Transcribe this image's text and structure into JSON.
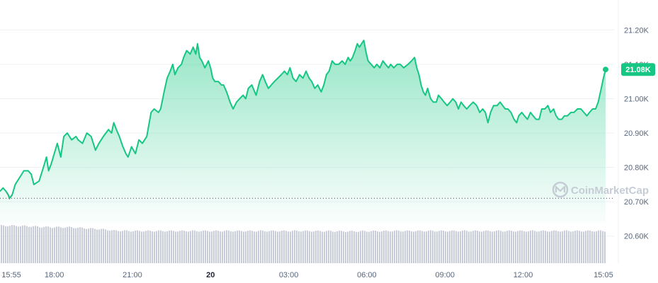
{
  "chart_data": {
    "type": "area",
    "series_color": "#16c784",
    "fill_color_top": "#16c784",
    "baseline_color": "#ea3943",
    "volume_color": "#c8ccd8",
    "ylim": [
      20.56,
      21.24
    ],
    "y_ticks": [
      {
        "value": 21.2,
        "label": "21.20K"
      },
      {
        "value": 21.1,
        "label": "21.10K"
      },
      {
        "value": 21.0,
        "label": "21.00K"
      },
      {
        "value": 20.9,
        "label": "20.90K"
      },
      {
        "value": 20.8,
        "label": "20.80K"
      },
      {
        "value": 20.7,
        "label": "20.70K"
      },
      {
        "value": 20.6,
        "label": "20.60K"
      }
    ],
    "x_ticks": [
      {
        "t": 0,
        "label": "15:55",
        "bold": false
      },
      {
        "t": 125,
        "label": "18:00",
        "bold": false
      },
      {
        "t": 305,
        "label": "21:00",
        "bold": false
      },
      {
        "t": 485,
        "label": "20",
        "bold": true
      },
      {
        "t": 665,
        "label": "03:00",
        "bold": false
      },
      {
        "t": 845,
        "label": "06:00",
        "bold": false
      },
      {
        "t": 1025,
        "label": "09:00",
        "bold": false
      },
      {
        "t": 1205,
        "label": "12:00",
        "bold": false
      },
      {
        "t": 1390,
        "label": "15:05",
        "bold": false
      }
    ],
    "baseline_value": 20.71,
    "current_price_label": "21.08K",
    "current_price_value": 21.085,
    "price_points": [
      [
        0,
        20.73
      ],
      [
        7,
        20.74
      ],
      [
        14,
        20.73
      ],
      [
        19,
        20.72
      ],
      [
        22,
        20.71
      ],
      [
        28,
        20.72
      ],
      [
        35,
        20.75
      ],
      [
        45,
        20.77
      ],
      [
        55,
        20.79
      ],
      [
        65,
        20.79
      ],
      [
        72,
        20.78
      ],
      [
        78,
        20.75
      ],
      [
        90,
        20.76
      ],
      [
        100,
        20.8
      ],
      [
        107,
        20.83
      ],
      [
        112,
        20.79
      ],
      [
        118,
        20.81
      ],
      [
        125,
        20.84
      ],
      [
        132,
        20.87
      ],
      [
        140,
        20.83
      ],
      [
        147,
        20.89
      ],
      [
        155,
        20.9
      ],
      [
        165,
        20.88
      ],
      [
        175,
        20.89
      ],
      [
        180,
        20.88
      ],
      [
        190,
        20.87
      ],
      [
        200,
        20.9
      ],
      [
        210,
        20.89
      ],
      [
        220,
        20.85
      ],
      [
        228,
        20.87
      ],
      [
        238,
        20.89
      ],
      [
        250,
        20.91
      ],
      [
        257,
        20.9
      ],
      [
        262,
        20.93
      ],
      [
        268,
        20.91
      ],
      [
        275,
        20.89
      ],
      [
        283,
        20.86
      ],
      [
        290,
        20.84
      ],
      [
        295,
        20.83
      ],
      [
        303,
        20.86
      ],
      [
        312,
        20.84
      ],
      [
        320,
        20.88
      ],
      [
        328,
        20.87
      ],
      [
        338,
        20.89
      ],
      [
        348,
        20.96
      ],
      [
        355,
        20.97
      ],
      [
        365,
        20.96
      ],
      [
        370,
        20.97
      ],
      [
        378,
        21.02
      ],
      [
        385,
        21.06
      ],
      [
        392,
        21.08
      ],
      [
        398,
        21.1
      ],
      [
        403,
        21.07
      ],
      [
        410,
        21.09
      ],
      [
        418,
        21.1
      ],
      [
        423,
        21.12
      ],
      [
        430,
        21.14
      ],
      [
        438,
        21.13
      ],
      [
        445,
        21.15
      ],
      [
        451,
        21.13
      ],
      [
        455,
        21.16
      ],
      [
        460,
        21.12
      ],
      [
        465,
        21.11
      ],
      [
        472,
        21.09
      ],
      [
        480,
        21.11
      ],
      [
        485,
        21.09
      ],
      [
        490,
        21.06
      ],
      [
        495,
        21.05
      ],
      [
        503,
        21.05
      ],
      [
        510,
        21.04
      ],
      [
        515,
        21.04
      ],
      [
        522,
        21.02
      ],
      [
        530,
        20.99
      ],
      [
        537,
        20.97
      ],
      [
        545,
        20.99
      ],
      [
        552,
        21.0
      ],
      [
        560,
        21.01
      ],
      [
        566,
        21.0
      ],
      [
        572,
        21.03
      ],
      [
        580,
        21.04
      ],
      [
        590,
        21.01
      ],
      [
        598,
        21.05
      ],
      [
        605,
        21.07
      ],
      [
        611,
        21.05
      ],
      [
        618,
        21.03
      ],
      [
        625,
        21.04
      ],
      [
        632,
        21.05
      ],
      [
        640,
        21.06
      ],
      [
        648,
        21.07
      ],
      [
        655,
        21.08
      ],
      [
        662,
        21.07
      ],
      [
        668,
        21.09
      ],
      [
        675,
        21.06
      ],
      [
        682,
        21.05
      ],
      [
        690,
        21.07
      ],
      [
        698,
        21.06
      ],
      [
        705,
        21.08
      ],
      [
        712,
        21.06
      ],
      [
        718,
        21.05
      ],
      [
        725,
        21.03
      ],
      [
        732,
        21.04
      ],
      [
        740,
        21.02
      ],
      [
        746,
        21.04
      ],
      [
        752,
        21.07
      ],
      [
        758,
        21.08
      ],
      [
        765,
        21.11
      ],
      [
        772,
        21.1
      ],
      [
        780,
        21.1
      ],
      [
        788,
        21.11
      ],
      [
        795,
        21.1
      ],
      [
        802,
        21.12
      ],
      [
        807,
        21.11
      ],
      [
        812,
        21.12
      ],
      [
        818,
        21.14
      ],
      [
        823,
        21.16
      ],
      [
        828,
        21.15
      ],
      [
        833,
        21.16
      ],
      [
        838,
        21.17
      ],
      [
        844,
        21.13
      ],
      [
        848,
        21.11
      ],
      [
        855,
        21.1
      ],
      [
        862,
        21.09
      ],
      [
        868,
        21.1
      ],
      [
        875,
        21.09
      ],
      [
        882,
        21.11
      ],
      [
        888,
        21.1
      ],
      [
        895,
        21.09
      ],
      [
        900,
        21.1
      ],
      [
        907,
        21.09
      ],
      [
        915,
        21.1
      ],
      [
        922,
        21.1
      ],
      [
        930,
        21.09
      ],
      [
        940,
        21.1
      ],
      [
        948,
        21.11
      ],
      [
        955,
        21.12
      ],
      [
        960,
        21.09
      ],
      [
        965,
        21.07
      ],
      [
        970,
        21.04
      ],
      [
        975,
        21.02
      ],
      [
        980,
        21.01
      ],
      [
        985,
        21.03
      ],
      [
        992,
        21.0
      ],
      [
        998,
        20.99
      ],
      [
        1005,
        20.99
      ],
      [
        1010,
        21.01
      ],
      [
        1017,
        21.0
      ],
      [
        1023,
        20.99
      ],
      [
        1030,
        20.98
      ],
      [
        1037,
        20.99
      ],
      [
        1043,
        21.0
      ],
      [
        1050,
        20.99
      ],
      [
        1056,
        20.97
      ],
      [
        1062,
        20.99
      ],
      [
        1068,
        20.98
      ],
      [
        1075,
        20.97
      ],
      [
        1082,
        20.98
      ],
      [
        1090,
        20.99
      ],
      [
        1098,
        20.98
      ],
      [
        1105,
        20.96
      ],
      [
        1112,
        20.97
      ],
      [
        1118,
        20.96
      ],
      [
        1124,
        20.93
      ],
      [
        1130,
        20.96
      ],
      [
        1137,
        20.98
      ],
      [
        1145,
        20.98
      ],
      [
        1152,
        20.99
      ],
      [
        1158,
        20.98
      ],
      [
        1164,
        20.97
      ],
      [
        1170,
        20.97
      ],
      [
        1177,
        20.96
      ],
      [
        1184,
        20.94
      ],
      [
        1190,
        20.93
      ],
      [
        1195,
        20.95
      ],
      [
        1202,
        20.96
      ],
      [
        1208,
        20.95
      ],
      [
        1215,
        20.94
      ],
      [
        1222,
        20.96
      ],
      [
        1228,
        20.95
      ],
      [
        1235,
        20.94
      ],
      [
        1242,
        20.94
      ],
      [
        1248,
        20.97
      ],
      [
        1255,
        20.97
      ],
      [
        1262,
        20.98
      ],
      [
        1268,
        20.96
      ],
      [
        1275,
        20.97
      ],
      [
        1281,
        20.95
      ],
      [
        1287,
        20.94
      ],
      [
        1294,
        20.94
      ],
      [
        1300,
        20.95
      ],
      [
        1307,
        20.95
      ],
      [
        1315,
        20.96
      ],
      [
        1322,
        20.96
      ],
      [
        1330,
        20.97
      ],
      [
        1338,
        20.97
      ],
      [
        1345,
        20.96
      ],
      [
        1352,
        20.95
      ],
      [
        1358,
        20.96
      ],
      [
        1365,
        20.97
      ],
      [
        1372,
        20.97
      ],
      [
        1378,
        20.99
      ],
      [
        1385,
        21.03
      ],
      [
        1390,
        21.06
      ],
      [
        1395,
        21.085
      ]
    ],
    "t_max": 1395,
    "volume_profile": [
      [
        0,
        1.0
      ],
      [
        30,
        1.0
      ],
      [
        60,
        0.99
      ],
      [
        90,
        0.97
      ],
      [
        120,
        0.96
      ],
      [
        160,
        0.96
      ],
      [
        200,
        0.93
      ],
      [
        240,
        0.9
      ],
      [
        260,
        0.87
      ],
      [
        300,
        0.86
      ],
      [
        400,
        0.86
      ],
      [
        500,
        0.86
      ],
      [
        600,
        0.86
      ],
      [
        700,
        0.86
      ],
      [
        800,
        0.85
      ],
      [
        900,
        0.86
      ],
      [
        1000,
        0.86
      ],
      [
        1100,
        0.86
      ],
      [
        1200,
        0.86
      ],
      [
        1300,
        0.86
      ],
      [
        1395,
        0.86
      ]
    ]
  },
  "watermark": {
    "text": "CoinMarketCap",
    "icon": "coinmarketcap-logo-icon"
  }
}
